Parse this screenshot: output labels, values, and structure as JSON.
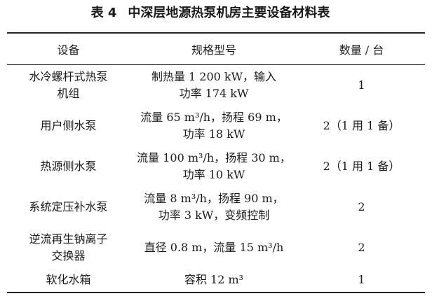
{
  "caption": {
    "label": "表 4",
    "title": "中深层地源热泵机房主要设备材料表"
  },
  "headers": [
    "设备",
    "规格型号",
    "数量 / 台"
  ],
  "rows": [
    {
      "equipment": [
        "水冷螺杆式热泵",
        "机组"
      ],
      "spec": [
        "制热量 1 200 kW，输入",
        "功率 174 kW"
      ],
      "qty": "1"
    },
    {
      "equipment": [
        "用户侧水泵"
      ],
      "spec": [
        "流量 65 m³/h，扬程 69 m，",
        "功率 18 kW"
      ],
      "qty": "2（1 用 1 备）"
    },
    {
      "equipment": [
        "热源侧水泵"
      ],
      "spec": [
        "流量 100 m³/h，扬程 30 m，",
        "功率 10 kW"
      ],
      "qty": "2（1 用 1 备）"
    },
    {
      "equipment": [
        "系统定压补水泵"
      ],
      "spec": [
        "流量 8 m³/h，扬程 90 m，",
        "功率 3 kW，变频控制"
      ],
      "qty": "2"
    },
    {
      "equipment": [
        "逆流再生钠离子",
        "交换器"
      ],
      "spec": [
        "直径 0.8 m，流量 15 m³/h"
      ],
      "qty": "2"
    },
    {
      "equipment": [
        "软化水箱"
      ],
      "spec": [
        "容积 12 m³"
      ],
      "qty": "1"
    }
  ]
}
